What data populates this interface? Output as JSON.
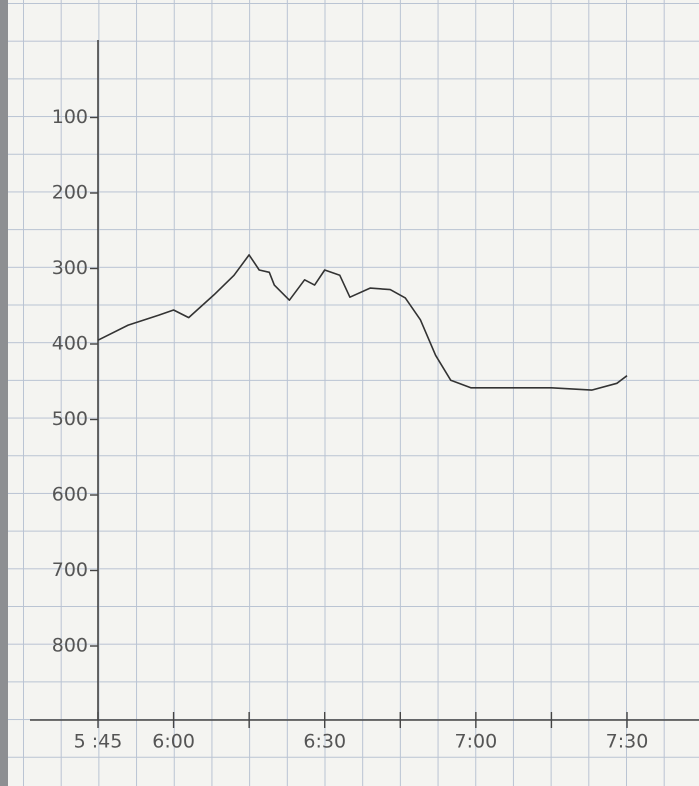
{
  "chart_data": {
    "type": "line",
    "x": [
      345,
      351,
      357,
      360,
      363,
      368,
      372,
      375,
      377,
      379,
      380,
      383,
      386,
      388,
      390,
      393,
      395,
      399,
      403,
      406,
      409,
      412,
      415,
      419,
      425,
      435,
      443,
      448,
      450
    ],
    "values": [
      395,
      375,
      362,
      355,
      365,
      335,
      309,
      282,
      302,
      305,
      322,
      342,
      315,
      322,
      302,
      309,
      338,
      326,
      328,
      339,
      368,
      415,
      448,
      458,
      458,
      458,
      461,
      452,
      442
    ],
    "color": "#333333",
    "xlim": [
      345,
      450
    ],
    "xticks": [
      {
        "value": 345,
        "label": "5 :45"
      },
      {
        "value": 360,
        "label": "6:00"
      },
      {
        "value": 375,
        "label": null
      },
      {
        "value": 390,
        "label": "6:30"
      },
      {
        "value": 405,
        "label": null
      },
      {
        "value": 420,
        "label": "7:00"
      },
      {
        "value": 435,
        "label": null
      },
      {
        "value": 450,
        "label": "7:30"
      }
    ],
    "ylim": [
      0,
      900
    ],
    "y_inverted": true,
    "yticks": [
      100,
      200,
      300,
      400,
      500,
      600,
      700,
      800
    ]
  }
}
